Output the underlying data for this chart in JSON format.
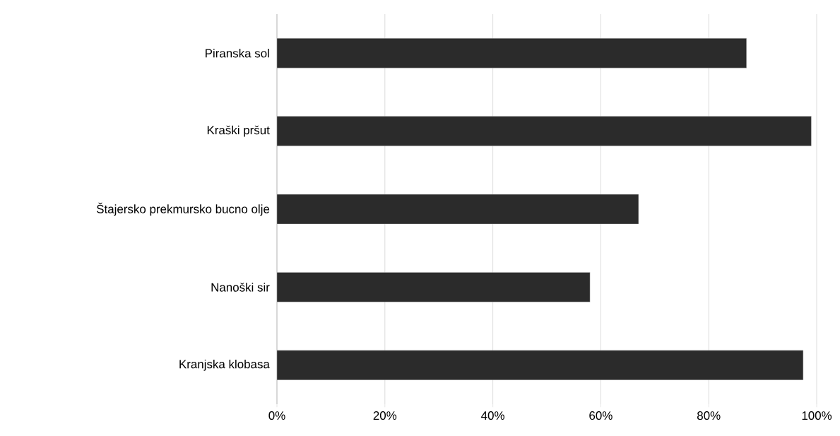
{
  "chart_data": {
    "type": "bar",
    "orientation": "horizontal",
    "categories": [
      "Piranska sol",
      "Kraški pršut",
      "Štajersko prekmursko bucno olje",
      "Nanoški sir",
      "Kranjska klobasa"
    ],
    "values": [
      87,
      99,
      67,
      58,
      97.5
    ],
    "color": "#2b2b2b",
    "xlim": [
      0,
      100
    ],
    "xticks": [
      {
        "value": 0,
        "label": "0%"
      },
      {
        "value": 20,
        "label": "20%"
      },
      {
        "value": 40,
        "label": "40%"
      },
      {
        "value": 60,
        "label": "60%"
      },
      {
        "value": 80,
        "label": "80%"
      },
      {
        "value": 100,
        "label": "100%"
      }
    ],
    "grid": "x"
  }
}
